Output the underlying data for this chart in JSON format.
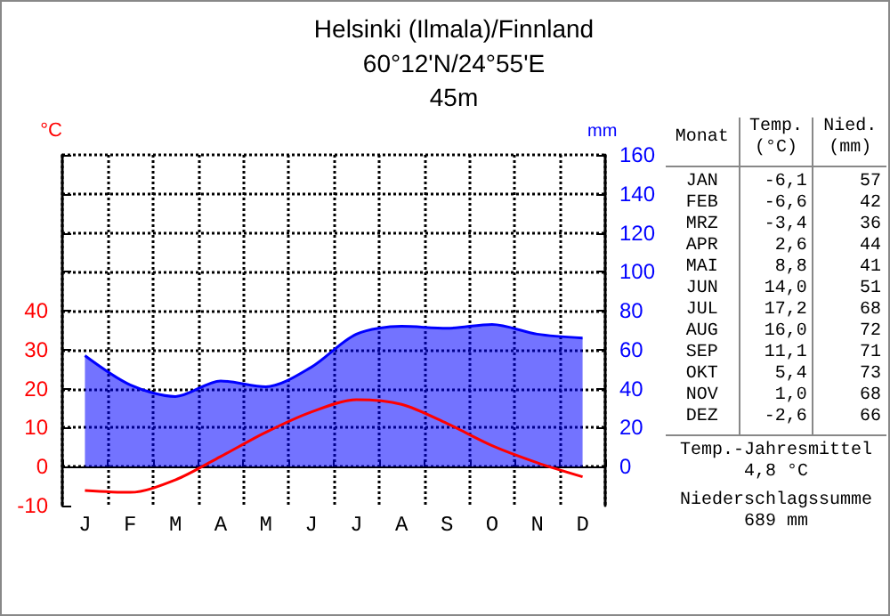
{
  "chart_data": {
    "type": "line",
    "title": "Helsinki (Ilmala)/Finnland",
    "subtitle": "60°12'N/24°55'E\n45m",
    "ylabel": "°C",
    "y2label": "mm",
    "categories": [
      "J",
      "F",
      "M",
      "A",
      "M",
      "J",
      "J",
      "A",
      "S",
      "O",
      "N",
      "D"
    ],
    "series": [
      {
        "type": "area",
        "axis": "y2",
        "color": "#0000ff",
        "values": [
          57,
          42,
          36,
          44,
          41,
          51,
          68,
          72,
          71,
          73,
          68,
          66
        ]
      },
      {
        "color": "#ff0000",
        "values": [
          -6.1,
          -6.6,
          -3.4,
          2.6,
          8.8,
          14.0,
          17.2,
          16.0,
          11.1,
          5.4,
          1.0,
          -2.6
        ]
      }
    ],
    "ylim": [
      -10,
      80
    ],
    "yticks": [
      -10,
      0,
      10,
      20,
      30,
      40,
      {
        "value": 50,
        "label": null
      },
      {
        "value": 60,
        "label": null
      },
      {
        "value": 70,
        "label": null
      },
      {
        "value": 80,
        "label": null
      }
    ],
    "y2lim": [
      -20,
      160
    ],
    "y2ticks": [
      0,
      20,
      40,
      60,
      80,
      100,
      120,
      140,
      160
    ],
    "grid": true,
    "marker": "none",
    "line_style": "solid",
    "annotations": [
      "Monat",
      "Temp.\n(°C)",
      "Nied.\n(mm)",
      "JAN",
      "-6,1",
      "57",
      "FEB",
      "-6,6",
      "42",
      "MRZ",
      "-3,4",
      "36",
      "APR",
      "2,6",
      "44",
      "MAI",
      "8,8",
      "41",
      "JUN",
      "14,0",
      "51",
      "JUL",
      "17,2",
      "68",
      "AUG",
      "16,0",
      "72",
      "SEP",
      "11,1",
      "71",
      "OKT",
      "5,4",
      "73",
      "NOV",
      "1,0",
      "68",
      "DEZ",
      "-2,6",
      "66",
      "Temp.-Jahresmittel\n4,8 °C",
      "Niederschlagssumme\n689 mm"
    ]
  }
}
